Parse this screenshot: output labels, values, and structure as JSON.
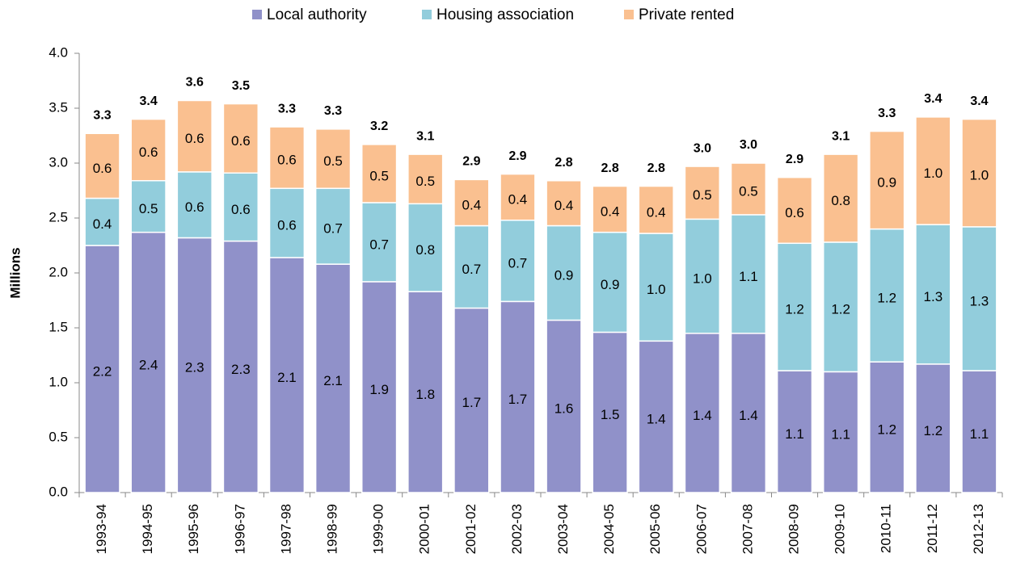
{
  "chart_data": {
    "type": "stacked_bar",
    "y_label": "Millions",
    "categories": [
      "1993-94",
      "1994-95",
      "1995-96",
      "1996-97",
      "1997-98",
      "1998-99",
      "1999-00",
      "2000-01",
      "2001-02",
      "2002-03",
      "2003-04",
      "2004-05",
      "2005-06",
      "2006-07",
      "2007-08",
      "2008-09",
      "2009-10",
      "2010-11",
      "2011-12",
      "2012-13"
    ],
    "series": [
      {
        "name": "Local authority",
        "color": "#9091c9",
        "values": [
          2.25,
          2.37,
          2.32,
          2.29,
          2.14,
          2.08,
          1.92,
          1.83,
          1.68,
          1.74,
          1.57,
          1.46,
          1.38,
          1.45,
          1.45,
          1.11,
          1.1,
          1.19,
          1.17,
          1.11
        ],
        "value_labels": [
          "2.2",
          "2.4",
          "2.3",
          "2.3",
          "2.1",
          "2.1",
          "1.9",
          "1.8",
          "1.7",
          "1.7",
          "1.6",
          "1.5",
          "1.4",
          "1.4",
          "1.4",
          "1.1",
          "1.1",
          "1.2",
          "1.2",
          "1.1"
        ]
      },
      {
        "name": "Housing association",
        "color": "#92cddc",
        "values": [
          0.43,
          0.47,
          0.6,
          0.62,
          0.63,
          0.69,
          0.72,
          0.8,
          0.75,
          0.74,
          0.86,
          0.91,
          0.98,
          1.04,
          1.08,
          1.16,
          1.18,
          1.21,
          1.27,
          1.31
        ],
        "value_labels": [
          "0.4",
          "0.5",
          "0.6",
          "0.6",
          "0.6",
          "0.7",
          "0.7",
          "0.8",
          "0.7",
          "0.7",
          "0.9",
          "0.9",
          "1.0",
          "1.0",
          "1.1",
          "1.2",
          "1.2",
          "1.2",
          "1.3",
          "1.3"
        ]
      },
      {
        "name": "Private rented",
        "color": "#fac090",
        "values": [
          0.59,
          0.56,
          0.65,
          0.63,
          0.56,
          0.54,
          0.53,
          0.45,
          0.42,
          0.42,
          0.41,
          0.42,
          0.43,
          0.48,
          0.47,
          0.6,
          0.8,
          0.89,
          0.98,
          0.98
        ],
        "value_labels": [
          "0.6",
          "0.6",
          "0.6",
          "0.6",
          "0.6",
          "0.5",
          "0.5",
          "0.5",
          "0.4",
          "0.4",
          "0.4",
          "0.4",
          "0.4",
          "0.5",
          "0.5",
          "0.6",
          "0.8",
          "0.9",
          "1.0",
          "1.0"
        ]
      }
    ],
    "totals": [
      3.27,
      3.4,
      3.57,
      3.54,
      3.33,
      3.31,
      3.17,
      3.08,
      2.85,
      2.9,
      2.84,
      2.79,
      2.79,
      2.97,
      3.0,
      2.87,
      3.08,
      3.29,
      3.42,
      3.4
    ],
    "total_labels": [
      "3.3",
      "3.4",
      "3.6",
      "3.5",
      "3.3",
      "3.3",
      "3.2",
      "3.1",
      "2.9",
      "2.9",
      "2.8",
      "2.8",
      "2.8",
      "3.0",
      "3.0",
      "2.9",
      "3.1",
      "3.3",
      "3.4",
      "3.4"
    ],
    "ylim": [
      0,
      4
    ],
    "yticks": [
      {
        "value": 0,
        "label": "0.0"
      },
      {
        "value": 0.5,
        "label": "0.5"
      },
      {
        "value": 1,
        "label": "1.0"
      },
      {
        "value": 1.5,
        "label": "1.5"
      },
      {
        "value": 2,
        "label": "2.0"
      },
      {
        "value": 2.5,
        "label": "2.5"
      },
      {
        "value": 3,
        "label": "3.0"
      },
      {
        "value": 3.5,
        "label": "3.5"
      },
      {
        "value": 4,
        "label": "4.0"
      }
    ],
    "legend": "top"
  }
}
